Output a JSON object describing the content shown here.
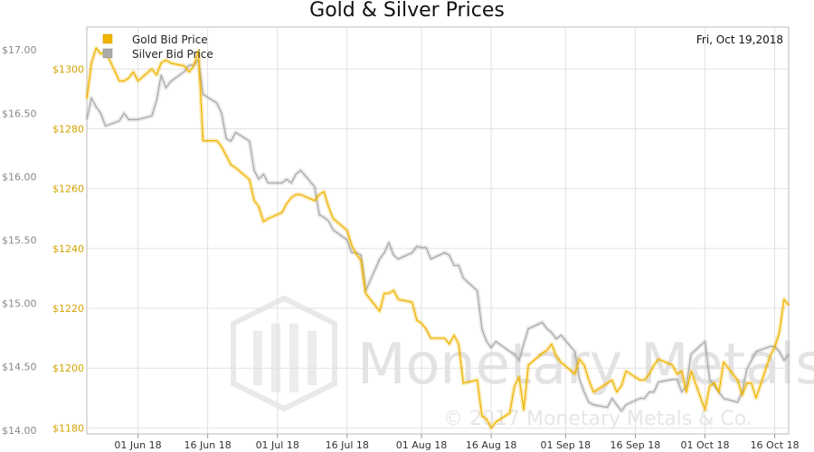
{
  "chart_data": {
    "type": "line",
    "title": "Gold & Silver Prices",
    "date_label": "Fri, Oct 19,2018",
    "legend_position": "top-left",
    "grid": true,
    "x_tick_labels": [
      "01 Jun 18",
      "16 Jun 18",
      "01 Jul 18",
      "16 Jul 18",
      "01 Aug 18",
      "16 Aug 18",
      "01 Sep 18",
      "16 Sep 18",
      "01 Oct 18",
      "16 Oct 18"
    ],
    "x_tick_dates": [
      "2018-06-01",
      "2018-06-16",
      "2018-07-01",
      "2018-07-16",
      "2018-08-01",
      "2018-08-16",
      "2018-09-01",
      "2018-09-16",
      "2018-10-01",
      "2018-10-16"
    ],
    "x_range": [
      "2018-05-21",
      "2018-10-19"
    ],
    "y_left": {
      "ticks": [
        "$14.00",
        "$14.50",
        "$15.00",
        "$15.50",
        "$16.00",
        "$16.50",
        "$17.00"
      ],
      "range": [
        13.97,
        17.18
      ]
    },
    "y_right": {
      "ticks": [
        "$1180",
        "$1200",
        "$1220",
        "$1240",
        "$1260",
        "$1280",
        "$1300"
      ],
      "range": [
        1178,
        1314
      ]
    },
    "watermark": {
      "brand": "Monetary Metals",
      "copyright": "© 2017 Monetary Metals & Co."
    },
    "series": [
      {
        "name": "Gold Bid Price",
        "axis": "right",
        "color": "#f0b400",
        "x": [
          "2018-05-21",
          "2018-05-22",
          "2018-05-23",
          "2018-05-24",
          "2018-05-25",
          "2018-05-28",
          "2018-05-29",
          "2018-05-30",
          "2018-05-31",
          "2018-06-01",
          "2018-06-04",
          "2018-06-05",
          "2018-06-06",
          "2018-06-07",
          "2018-06-08",
          "2018-06-11",
          "2018-06-12",
          "2018-06-13",
          "2018-06-14",
          "2018-06-15",
          "2018-06-18",
          "2018-06-19",
          "2018-06-20",
          "2018-06-21",
          "2018-06-22",
          "2018-06-25",
          "2018-06-26",
          "2018-06-27",
          "2018-06-28",
          "2018-06-29",
          "2018-07-02",
          "2018-07-03",
          "2018-07-04",
          "2018-07-05",
          "2018-07-06",
          "2018-07-09",
          "2018-07-10",
          "2018-07-11",
          "2018-07-12",
          "2018-07-13",
          "2018-07-16",
          "2018-07-17",
          "2018-07-18",
          "2018-07-19",
          "2018-07-20",
          "2018-07-23",
          "2018-07-24",
          "2018-07-25",
          "2018-07-26",
          "2018-07-27",
          "2018-07-30",
          "2018-07-31",
          "2018-08-01",
          "2018-08-02",
          "2018-08-03",
          "2018-08-06",
          "2018-08-07",
          "2018-08-08",
          "2018-08-09",
          "2018-08-10",
          "2018-08-13",
          "2018-08-14",
          "2018-08-15",
          "2018-08-16",
          "2018-08-17",
          "2018-08-20",
          "2018-08-21",
          "2018-08-22",
          "2018-08-23",
          "2018-08-24",
          "2018-08-27",
          "2018-08-28",
          "2018-08-29",
          "2018-08-30",
          "2018-08-31",
          "2018-09-03",
          "2018-09-04",
          "2018-09-05",
          "2018-09-06",
          "2018-09-07",
          "2018-09-10",
          "2018-09-11",
          "2018-09-12",
          "2018-09-13",
          "2018-09-14",
          "2018-09-17",
          "2018-09-18",
          "2018-09-19",
          "2018-09-20",
          "2018-09-21",
          "2018-09-24",
          "2018-09-25",
          "2018-09-26",
          "2018-09-27",
          "2018-09-28",
          "2018-10-01",
          "2018-10-02",
          "2018-10-03",
          "2018-10-04",
          "2018-10-05",
          "2018-10-08",
          "2018-10-09",
          "2018-10-10",
          "2018-10-11",
          "2018-10-12",
          "2018-10-15",
          "2018-10-16",
          "2018-10-17",
          "2018-10-18",
          "2018-10-19"
        ],
        "values": [
          1290,
          1302,
          1307,
          1305,
          1306,
          1296,
          1296,
          1297,
          1299,
          1296,
          1300,
          1298,
          1302,
          1303,
          1302,
          1301,
          1299,
          1301,
          1306,
          1276,
          1276,
          1274,
          1271,
          1268,
          1267,
          1263,
          1256,
          1254,
          1249,
          1250,
          1252,
          1255,
          1257,
          1258,
          1258,
          1256,
          1258,
          1259,
          1254,
          1250,
          1246,
          1241,
          1238,
          1236,
          1225,
          1219,
          1225,
          1225,
          1226,
          1223,
          1222,
          1216,
          1215,
          1213,
          1210,
          1210,
          1208,
          1211,
          1208,
          1195,
          1196,
          1184,
          1183,
          1180,
          1182,
          1185,
          1194,
          1197,
          1186,
          1201,
          1205,
          1206,
          1208,
          1204,
          1202,
          1198,
          1203,
          1201,
          1196,
          1192,
          1195,
          1196,
          1192,
          1194,
          1199,
          1196,
          1196,
          1198,
          1201,
          1203,
          1201,
          1198,
          1199,
          1192,
          1199,
          1186,
          1194,
          1195,
          1192,
          1202,
          1196,
          1191,
          1195,
          1195,
          1190,
          1204,
          1207,
          1212,
          1223,
          1221
        ]
      },
      {
        "name": "Silver Bid Price",
        "axis": "left",
        "color": "#aaaaaa",
        "x": [
          "2018-05-21",
          "2018-05-22",
          "2018-05-23",
          "2018-05-24",
          "2018-05-25",
          "2018-05-28",
          "2018-05-29",
          "2018-05-30",
          "2018-05-31",
          "2018-06-01",
          "2018-06-04",
          "2018-06-05",
          "2018-06-06",
          "2018-06-07",
          "2018-06-08",
          "2018-06-11",
          "2018-06-12",
          "2018-06-13",
          "2018-06-14",
          "2018-06-15",
          "2018-06-18",
          "2018-06-19",
          "2018-06-20",
          "2018-06-21",
          "2018-06-22",
          "2018-06-25",
          "2018-06-26",
          "2018-06-27",
          "2018-06-28",
          "2018-06-29",
          "2018-07-02",
          "2018-07-03",
          "2018-07-04",
          "2018-07-05",
          "2018-07-06",
          "2018-07-09",
          "2018-07-10",
          "2018-07-11",
          "2018-07-12",
          "2018-07-13",
          "2018-07-16",
          "2018-07-17",
          "2018-07-18",
          "2018-07-19",
          "2018-07-20",
          "2018-07-23",
          "2018-07-24",
          "2018-07-25",
          "2018-07-26",
          "2018-07-27",
          "2018-07-30",
          "2018-07-31",
          "2018-08-01",
          "2018-08-02",
          "2018-08-03",
          "2018-08-06",
          "2018-08-07",
          "2018-08-08",
          "2018-08-09",
          "2018-08-10",
          "2018-08-13",
          "2018-08-14",
          "2018-08-15",
          "2018-08-16",
          "2018-08-17",
          "2018-08-20",
          "2018-08-21",
          "2018-08-22",
          "2018-08-23",
          "2018-08-24",
          "2018-08-27",
          "2018-08-28",
          "2018-08-29",
          "2018-08-30",
          "2018-08-31",
          "2018-09-03",
          "2018-09-04",
          "2018-09-05",
          "2018-09-06",
          "2018-09-07",
          "2018-09-10",
          "2018-09-11",
          "2018-09-12",
          "2018-09-13",
          "2018-09-14",
          "2018-09-17",
          "2018-09-18",
          "2018-09-19",
          "2018-09-20",
          "2018-09-21",
          "2018-09-24",
          "2018-09-25",
          "2018-09-26",
          "2018-09-27",
          "2018-09-28",
          "2018-10-01",
          "2018-10-02",
          "2018-10-03",
          "2018-10-04",
          "2018-10-05",
          "2018-10-08",
          "2018-10-09",
          "2018-10-10",
          "2018-10-11",
          "2018-10-12",
          "2018-10-15",
          "2018-10-16",
          "2018-10-17",
          "2018-10-18",
          "2018-10-19"
        ],
        "values": [
          16.45,
          16.62,
          16.55,
          16.5,
          16.4,
          16.44,
          16.5,
          16.45,
          16.45,
          16.45,
          16.48,
          16.6,
          16.8,
          16.7,
          16.75,
          16.83,
          16.88,
          16.88,
          16.92,
          16.65,
          16.58,
          16.5,
          16.3,
          16.28,
          16.35,
          16.28,
          16.05,
          15.98,
          16.02,
          15.95,
          15.95,
          15.98,
          15.95,
          16.02,
          16.05,
          15.92,
          15.7,
          15.68,
          15.65,
          15.58,
          15.5,
          15.4,
          15.4,
          15.38,
          15.1,
          15.35,
          15.4,
          15.48,
          15.38,
          15.35,
          15.4,
          15.45,
          15.44,
          15.44,
          15.35,
          15.4,
          15.38,
          15.3,
          15.3,
          15.2,
          15.1,
          14.8,
          14.7,
          14.65,
          14.7,
          14.62,
          14.6,
          14.55,
          14.68,
          14.8,
          14.85,
          14.8,
          14.77,
          14.72,
          14.75,
          14.62,
          14.4,
          14.3,
          14.22,
          14.2,
          14.18,
          14.25,
          14.2,
          14.15,
          14.2,
          14.25,
          14.25,
          14.3,
          14.3,
          14.38,
          14.4,
          14.4,
          14.3,
          14.35,
          14.6,
          14.7,
          14.4,
          14.35,
          14.3,
          14.25,
          14.22,
          14.3,
          14.48,
          14.55,
          14.62,
          14.66,
          14.66,
          14.62,
          14.55,
          14.6
        ]
      }
    ]
  }
}
